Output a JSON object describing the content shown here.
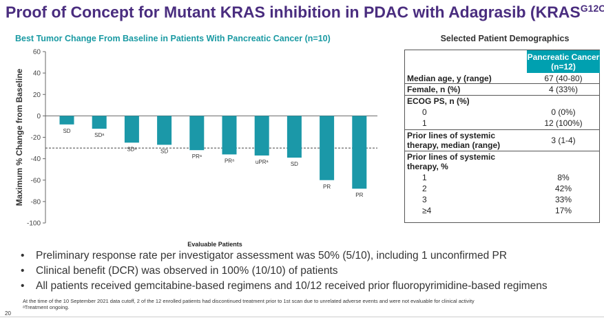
{
  "slide": {
    "title": "Proof of Concept for Mutant KRAS inhibition in PDAC with Adagrasib (KRAS",
    "title_sup": "G12C",
    "title_close": ")",
    "page_number": "20"
  },
  "chart_data": {
    "type": "bar",
    "title": "Best Tumor Change From Baseline in Patients With Pancreatic Cancer (n=10)",
    "xlabel": "Evaluable Patients",
    "ylabel": "Maximum % Change from Baseline",
    "ylim": [
      -100,
      60
    ],
    "yticks": [
      "60",
      "40",
      "20",
      "0",
      "-20",
      "-40",
      "-60",
      "-80",
      "-100"
    ],
    "ytick_values": [
      60,
      40,
      20,
      0,
      -20,
      -40,
      -60,
      -80,
      -100
    ],
    "reference_line": -30,
    "values": [
      -8,
      -12,
      -25,
      -27,
      -32,
      -36,
      -37,
      -39,
      -60,
      -68
    ],
    "labels": [
      "SD",
      "SDᵃ",
      "SDᵃ",
      "SD",
      "PRᵃ",
      "PRᵃ",
      "uPRᵃ",
      "SD",
      "PR",
      "PR"
    ],
    "bar_color": "#1b98a8",
    "grid": false
  },
  "demographics": {
    "title": "Selected Patient Demographics",
    "header": "Pancreatic Cancer (n=12)",
    "rows": {
      "age_label": "Median age, y (range)",
      "age_val": "67 (40-80)",
      "female_label": "Female, n (%)",
      "female_val": "4 (33%)",
      "ecog_label": "ECOG PS, n (%)",
      "ecog0_label": "0",
      "ecog0_val": "0 (0%)",
      "ecog1_label": "1",
      "ecog1_val": "12 (100%)",
      "prior_median_label1": "Prior lines of systemic",
      "prior_median_label2": "therapy, median (range)",
      "prior_median_val": "3 (1-4)",
      "prior_pct_label1": "Prior lines of systemic",
      "prior_pct_label2": "therapy, %",
      "p1_label": "1",
      "p1_val": "8%",
      "p2_label": "2",
      "p2_val": "42%",
      "p3_label": "3",
      "p3_val": "33%",
      "p4_label": "≥4",
      "p4_val": "17%"
    }
  },
  "bullets": [
    "Preliminary response rate per investigator assessment was 50% (5/10), including 1 unconfirmed PR",
    "Clinical benefit (DCR) was observed in 100% (10/10) of patients",
    "All patients received gemcitabine-based regimens and 10/12 received prior fluoropyrimidine-based regimens"
  ],
  "footnotes": {
    "line1": "At the time of the 10 September 2021 data cutoff, 2 of the 12 enrolled patients had discontinued treatment prior to 1st scan due to unrelated adverse events and were not evaluable for clinical activity",
    "line2": "ᵃTreatment ongoing."
  }
}
